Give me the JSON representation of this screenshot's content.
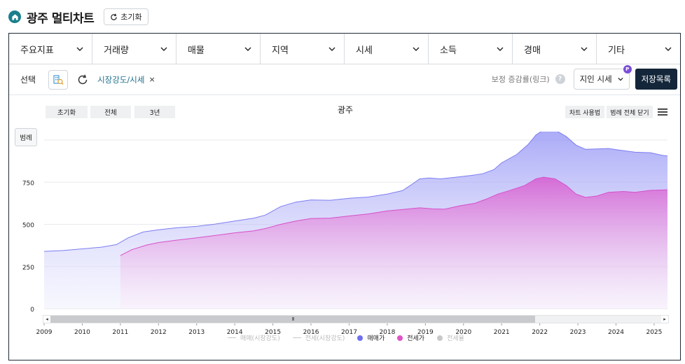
{
  "header": {
    "title": "광주 멀티차트",
    "reset_label": "초기화"
  },
  "menu": [
    {
      "label": "주요지표"
    },
    {
      "label": "거래량"
    },
    {
      "label": "매물"
    },
    {
      "label": "지역"
    },
    {
      "label": "시세"
    },
    {
      "label": "소득"
    },
    {
      "label": "경매"
    },
    {
      "label": "기타"
    }
  ],
  "toolbar": {
    "select_label": "선택",
    "tag_label": "시장강도/시세",
    "tag_close": "×",
    "hint_text": "보정 증감률(링크)",
    "help": "?",
    "price_select": "지인 시세",
    "badge": "P",
    "save_label": "저장목록"
  },
  "chart_controls": {
    "reset": "초기화",
    "all": "전체",
    "three_years": "3년",
    "usage": "차트 사용법",
    "close_legend": "범례 전체 닫기",
    "legend_toggle": "범례"
  },
  "colors": {
    "sale": "#6f6ff0",
    "jeonse": "#e052c6",
    "rate": "#c8c8c8",
    "frame": "#1f2a36"
  },
  "chart_data": {
    "type": "area",
    "title": "광주",
    "x_range": [
      2009,
      2025.35
    ],
    "ylim": [
      0,
      1050
    ],
    "y_ticks": [
      0,
      250,
      500,
      750
    ],
    "x_ticks": [
      "2009",
      "2010",
      "2011",
      "2012",
      "2013",
      "2014",
      "2015",
      "2016",
      "2017",
      "2018",
      "2019",
      "2020",
      "2021",
      "2022",
      "2023",
      "2024",
      "2025"
    ],
    "grid": true,
    "legend_position": "bottom",
    "scroll_label": "III",
    "series": [
      {
        "name": "매매(시장강도)",
        "visible": false
      },
      {
        "name": "전세(시장강도)",
        "visible": false
      },
      {
        "name": "매매가",
        "visible": true,
        "points": [
          [
            2009.0,
            340
          ],
          [
            2009.5,
            345
          ],
          [
            2010.0,
            355
          ],
          [
            2010.5,
            365
          ],
          [
            2010.9,
            380
          ],
          [
            2011.2,
            420
          ],
          [
            2011.6,
            455
          ],
          [
            2012.0,
            468
          ],
          [
            2012.5,
            480
          ],
          [
            2013.0,
            488
          ],
          [
            2013.5,
            502
          ],
          [
            2014.0,
            520
          ],
          [
            2014.5,
            537
          ],
          [
            2014.8,
            555
          ],
          [
            2015.2,
            605
          ],
          [
            2015.6,
            632
          ],
          [
            2016.0,
            645
          ],
          [
            2016.5,
            643
          ],
          [
            2017.0,
            655
          ],
          [
            2017.5,
            662
          ],
          [
            2018.0,
            680
          ],
          [
            2018.4,
            700
          ],
          [
            2018.6,
            730
          ],
          [
            2018.85,
            770
          ],
          [
            2019.1,
            775
          ],
          [
            2019.4,
            770
          ],
          [
            2019.8,
            780
          ],
          [
            2020.2,
            790
          ],
          [
            2020.5,
            800
          ],
          [
            2020.8,
            825
          ],
          [
            2021.0,
            865
          ],
          [
            2021.4,
            915
          ],
          [
            2021.7,
            975
          ],
          [
            2021.9,
            1030
          ],
          [
            2022.1,
            1060
          ],
          [
            2022.4,
            1060
          ],
          [
            2022.7,
            1020
          ],
          [
            2022.95,
            970
          ],
          [
            2023.2,
            945
          ],
          [
            2023.5,
            947
          ],
          [
            2023.8,
            950
          ],
          [
            2024.1,
            940
          ],
          [
            2024.5,
            928
          ],
          [
            2024.9,
            925
          ],
          [
            2025.2,
            910
          ],
          [
            2025.35,
            905
          ]
        ]
      },
      {
        "name": "전세가",
        "visible": true,
        "points": [
          [
            2011.0,
            315
          ],
          [
            2011.3,
            350
          ],
          [
            2011.7,
            378
          ],
          [
            2012.0,
            392
          ],
          [
            2012.5,
            407
          ],
          [
            2013.0,
            420
          ],
          [
            2013.5,
            435
          ],
          [
            2014.0,
            450
          ],
          [
            2014.5,
            462
          ],
          [
            2014.8,
            475
          ],
          [
            2015.2,
            500
          ],
          [
            2015.6,
            520
          ],
          [
            2016.0,
            535
          ],
          [
            2016.5,
            537
          ],
          [
            2017.0,
            550
          ],
          [
            2017.5,
            562
          ],
          [
            2018.0,
            580
          ],
          [
            2018.5,
            590
          ],
          [
            2018.85,
            598
          ],
          [
            2019.2,
            592
          ],
          [
            2019.5,
            590
          ],
          [
            2019.9,
            610
          ],
          [
            2020.3,
            625
          ],
          [
            2020.6,
            650
          ],
          [
            2020.9,
            680
          ],
          [
            2021.2,
            700
          ],
          [
            2021.6,
            730
          ],
          [
            2021.9,
            770
          ],
          [
            2022.1,
            780
          ],
          [
            2022.4,
            770
          ],
          [
            2022.7,
            730
          ],
          [
            2022.95,
            680
          ],
          [
            2023.2,
            660
          ],
          [
            2023.5,
            668
          ],
          [
            2023.8,
            690
          ],
          [
            2024.2,
            695
          ],
          [
            2024.5,
            690
          ],
          [
            2024.9,
            702
          ],
          [
            2025.35,
            705
          ]
        ]
      },
      {
        "name": "전세율",
        "visible": false
      }
    ]
  }
}
